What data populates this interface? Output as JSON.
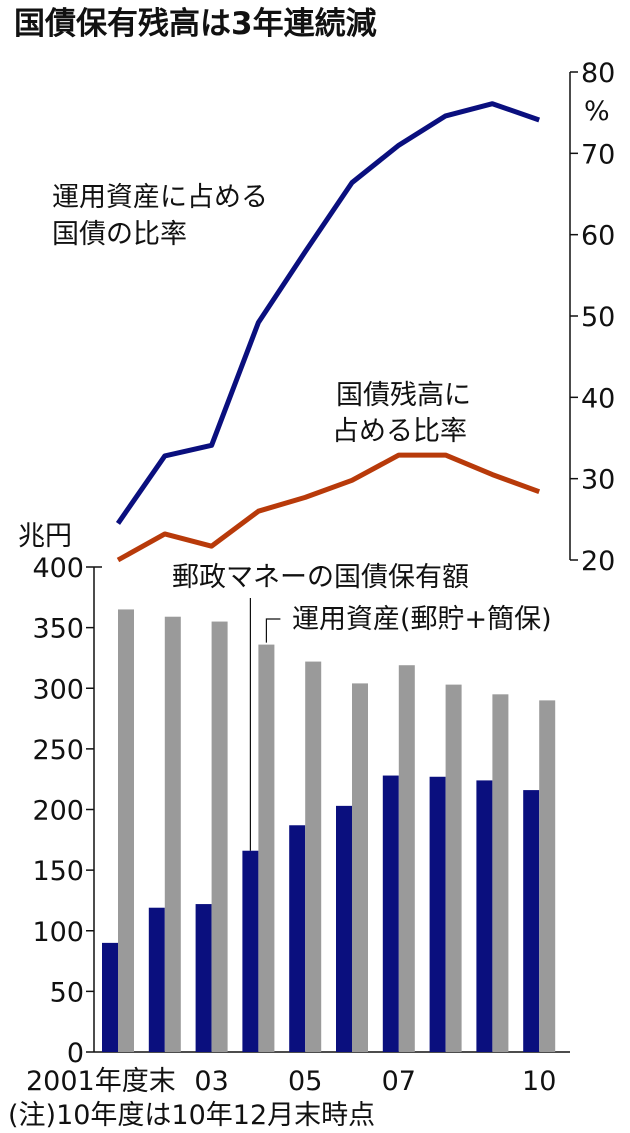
{
  "chart_data": {
    "type": "bar+line",
    "title": "国債保有残高は3年連続減",
    "categories": [
      "2001",
      "2002",
      "2003",
      "2004",
      "2005",
      "2006",
      "2007",
      "2008",
      "2009",
      "2010"
    ],
    "x_tick_labels": [
      "2001年度末",
      "",
      "03",
      "",
      "05",
      "",
      "07",
      "",
      "",
      "10"
    ],
    "bar_axis": {
      "unit_label": "兆円",
      "ylim": [
        0,
        400
      ],
      "ticks": [
        0,
        50,
        100,
        150,
        200,
        250,
        300,
        350,
        400
      ]
    },
    "line_axis": {
      "unit_label": "%",
      "ylim": [
        20,
        80
      ],
      "ticks": [
        20,
        30,
        40,
        50,
        60,
        70,
        80
      ]
    },
    "bar_series": [
      {
        "name": "郵政マネーの国債保有額",
        "color": "#0a0f7e",
        "values": [
          90,
          119,
          122,
          166,
          187,
          203,
          228,
          227,
          224,
          216
        ]
      },
      {
        "name": "運用資産(郵貯+簡保)",
        "color": "#9a9a9a",
        "values": [
          365,
          359,
          355,
          336,
          322,
          304,
          319,
          303,
          295,
          290
        ]
      }
    ],
    "line_series": [
      {
        "name": "運用資産に占める国債の比率",
        "label_lines": [
          "運用資産に占める",
          "国債の比率"
        ],
        "color": "#0a0f7e",
        "values": [
          24.5,
          32.8,
          34.1,
          49.2,
          57.9,
          66.4,
          71.0,
          74.6,
          76.1,
          74.1
        ]
      },
      {
        "name": "国債残高に占める比率",
        "label_lines": [
          "国債残高に",
          "占める比率"
        ],
        "color": "#b83a0a",
        "values": [
          20.0,
          23.2,
          21.7,
          26.0,
          27.7,
          29.8,
          32.9,
          32.9,
          30.5,
          28.4
        ]
      }
    ],
    "note": "(注)10年度は10年12月末時点"
  }
}
